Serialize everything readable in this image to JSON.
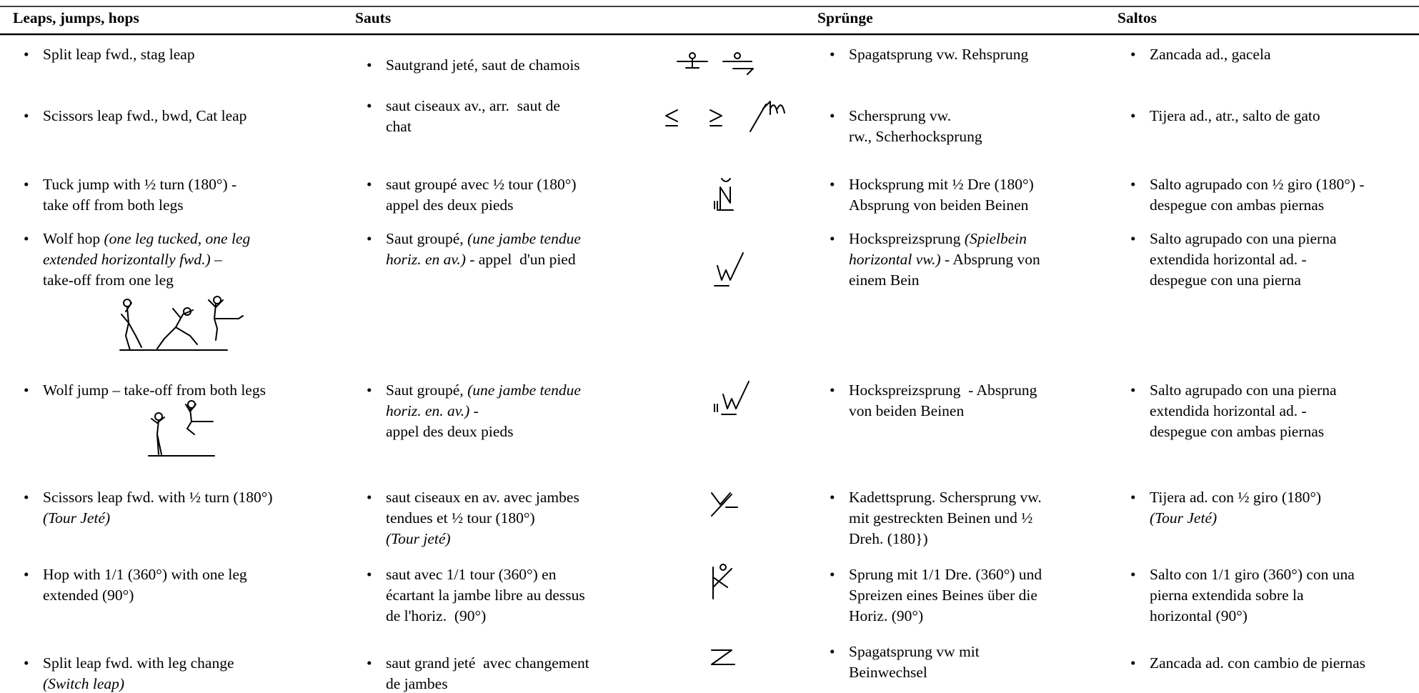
{
  "header": [
    "Leaps, jumps, hops",
    "Sauts",
    "Sprünge",
    "Saltos"
  ],
  "rows": [
    [
      [
        "Split leap fwd., stag leap"
      ],
      [
        "Sautgrand jeté, saut de chamois"
      ],
      [
        "Spagatsprung vw. Rehsprung"
      ],
      [
        "Zancada ad., gacela"
      ]
    ],
    [
      [
        "Scissors leap fwd., bwd, Cat leap"
      ],
      [
        "saut ciseaux av., arr.  saut de\nchat"
      ],
      [
        "Schersprung vw.\nrw., Scherhocksprung"
      ],
      [
        "Tijera ad., atr., salto de gato"
      ]
    ],
    [
      [
        "Tuck jump with ½ turn (180°) -\ntake off from both legs"
      ],
      [
        "saut groupé avec ½ tour (180°)\nappel des deux pieds"
      ],
      [
        "Hocksprung mit ½ Dre (180°)\nAbsprung von beiden Beinen"
      ],
      [
        "Salto agrupado con ½ giro (180°) -\ndespegue con ambas piernas"
      ]
    ],
    [
      [
        "Wolf hop ",
        {
          "text": "(one leg tucked, one leg\nextended horizontally fwd.)",
          "italic": true
        },
        " –\ntake-off from one leg"
      ],
      [
        "Saut groupé, ",
        {
          "text": "(une jambe tendue\nhoriz. en av.)",
          "italic": true
        },
        " - appel  d'un pied"
      ],
      [
        "Hockspreizsprung ",
        {
          "text": "(Spielbein\nhorizontal vw.)",
          "italic": true
        },
        " - Absprung von\neinem Bein"
      ],
      [
        "Salto agrupado con una pierna\nextendida horizontal ad. -\ndespegue con una pierna"
      ]
    ],
    [
      [
        "Wolf jump – take-off from both legs"
      ],
      [
        "Saut groupé, ",
        {
          "text": "(une jambe tendue\nhoriz. en. av.)",
          "italic": true
        },
        " -\nappel des deux pieds"
      ],
      [
        "Hockspreizsprung  - Absprung\nvon beiden Beinen"
      ],
      [
        "Salto agrupado con una pierna\nextendida horizontal ad. -\ndespegue con ambas piernas"
      ]
    ],
    [
      [
        "Scissors leap fwd. with ½ turn (180°)\n",
        {
          "text": "(Tour Jeté)",
          "italic": true
        }
      ],
      [
        "saut ciseaux en av. avec jambes\ntendues et ½ tour (180°)\n",
        {
          "text": "(Tour jeté)",
          "italic": true
        }
      ],
      [
        "Kadettsprung. Schersprung vw.\nmit gestreckten Beinen und ½\nDreh. (180})"
      ],
      [
        "Tijera ad. con ½ giro (180°)\n",
        {
          "text": "(Tour Jeté)",
          "italic": true
        }
      ]
    ],
    [
      [
        "Hop with 1/1 (360°) with one leg\nextended (90°)"
      ],
      [
        "saut avec 1/1 tour (360°) en\nécartant la jambe libre au dessus\nde l'horiz.  (90°)"
      ],
      [
        "Sprung mit 1/1 Dre. (360°) und\nSpreizen eines Beines über die\nHoriz. (90°)"
      ],
      [
        "Salto con 1/1 giro (360°) con una\npierna extendida sobre la\nhorizontal (90°)"
      ]
    ],
    [
      [
        "Split leap fwd. with leg change\n",
        {
          "text": "(Switch leap)",
          "italic": true
        }
      ],
      [
        "saut grand jeté  avec changement\nde jambes"
      ],
      [
        "Spagatsprung vw mit\nBeinwechsel"
      ],
      [
        "Zancada ad. con cambio de piernas"
      ]
    ]
  ]
}
